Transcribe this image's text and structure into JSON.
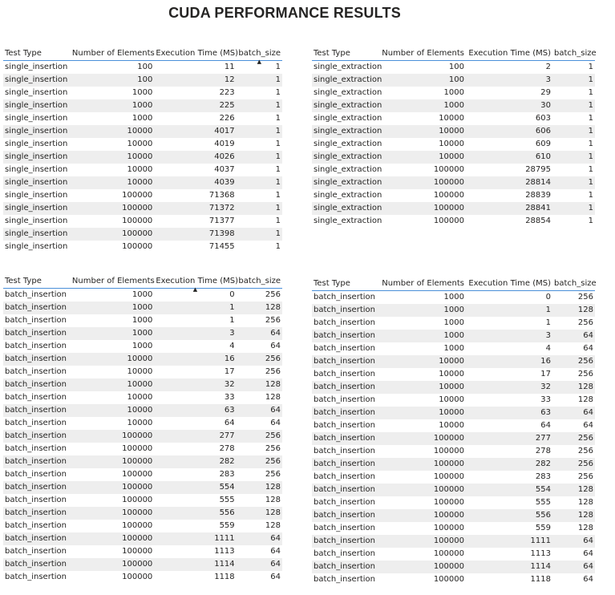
{
  "title": "CUDA PERFORMANCE RESULTS",
  "tables": [
    {
      "columns": [
        "Test Type",
        "Number of Elements",
        "Execution Time (MS)",
        "batch_size"
      ],
      "sort_column": 3,
      "rows": [
        [
          "single_insertion",
          "100",
          "11",
          "1"
        ],
        [
          "single_insertion",
          "100",
          "12",
          "1"
        ],
        [
          "single_insertion",
          "1000",
          "223",
          "1"
        ],
        [
          "single_insertion",
          "1000",
          "225",
          "1"
        ],
        [
          "single_insertion",
          "1000",
          "226",
          "1"
        ],
        [
          "single_insertion",
          "10000",
          "4017",
          "1"
        ],
        [
          "single_insertion",
          "10000",
          "4019",
          "1"
        ],
        [
          "single_insertion",
          "10000",
          "4026",
          "1"
        ],
        [
          "single_insertion",
          "10000",
          "4037",
          "1"
        ],
        [
          "single_insertion",
          "10000",
          "4039",
          "1"
        ],
        [
          "single_insertion",
          "100000",
          "71368",
          "1"
        ],
        [
          "single_insertion",
          "100000",
          "71372",
          "1"
        ],
        [
          "single_insertion",
          "100000",
          "71377",
          "1"
        ],
        [
          "single_insertion",
          "100000",
          "71398",
          "1"
        ],
        [
          "single_insertion",
          "100000",
          "71455",
          "1"
        ]
      ]
    },
    {
      "columns": [
        "Test Type",
        "Number of Elements",
        "Execution Time (MS)",
        "batch_size"
      ],
      "sort_column": -1,
      "rows": [
        [
          "single_extraction",
          "100",
          "2",
          "1"
        ],
        [
          "single_extraction",
          "100",
          "3",
          "1"
        ],
        [
          "single_extraction",
          "1000",
          "29",
          "1"
        ],
        [
          "single_extraction",
          "1000",
          "30",
          "1"
        ],
        [
          "single_extraction",
          "10000",
          "603",
          "1"
        ],
        [
          "single_extraction",
          "10000",
          "606",
          "1"
        ],
        [
          "single_extraction",
          "10000",
          "609",
          "1"
        ],
        [
          "single_extraction",
          "10000",
          "610",
          "1"
        ],
        [
          "single_extraction",
          "100000",
          "28795",
          "1"
        ],
        [
          "single_extraction",
          "100000",
          "28814",
          "1"
        ],
        [
          "single_extraction",
          "100000",
          "28839",
          "1"
        ],
        [
          "single_extraction",
          "100000",
          "28841",
          "1"
        ],
        [
          "single_extraction",
          "100000",
          "28854",
          "1"
        ]
      ]
    },
    {
      "columns": [
        "Test Type",
        "Number of Elements",
        "Execution Time (MS)",
        "batch_size"
      ],
      "sort_column": 2,
      "rows": [
        [
          "batch_insertion",
          "1000",
          "0",
          "256"
        ],
        [
          "batch_insertion",
          "1000",
          "1",
          "128"
        ],
        [
          "batch_insertion",
          "1000",
          "1",
          "256"
        ],
        [
          "batch_insertion",
          "1000",
          "3",
          "64"
        ],
        [
          "batch_insertion",
          "1000",
          "4",
          "64"
        ],
        [
          "batch_insertion",
          "10000",
          "16",
          "256"
        ],
        [
          "batch_insertion",
          "10000",
          "17",
          "256"
        ],
        [
          "batch_insertion",
          "10000",
          "32",
          "128"
        ],
        [
          "batch_insertion",
          "10000",
          "33",
          "128"
        ],
        [
          "batch_insertion",
          "10000",
          "63",
          "64"
        ],
        [
          "batch_insertion",
          "10000",
          "64",
          "64"
        ],
        [
          "batch_insertion",
          "100000",
          "277",
          "256"
        ],
        [
          "batch_insertion",
          "100000",
          "278",
          "256"
        ],
        [
          "batch_insertion",
          "100000",
          "282",
          "256"
        ],
        [
          "batch_insertion",
          "100000",
          "283",
          "256"
        ],
        [
          "batch_insertion",
          "100000",
          "554",
          "128"
        ],
        [
          "batch_insertion",
          "100000",
          "555",
          "128"
        ],
        [
          "batch_insertion",
          "100000",
          "556",
          "128"
        ],
        [
          "batch_insertion",
          "100000",
          "559",
          "128"
        ],
        [
          "batch_insertion",
          "100000",
          "1111",
          "64"
        ],
        [
          "batch_insertion",
          "100000",
          "1113",
          "64"
        ],
        [
          "batch_insertion",
          "100000",
          "1114",
          "64"
        ],
        [
          "batch_insertion",
          "100000",
          "1118",
          "64"
        ]
      ]
    },
    {
      "columns": [
        "Test Type",
        "Number of Elements",
        "Execution Time (MS)",
        "batch_size"
      ],
      "sort_column": -1,
      "rows": [
        [
          "batch_insertion",
          "1000",
          "0",
          "256"
        ],
        [
          "batch_insertion",
          "1000",
          "1",
          "128"
        ],
        [
          "batch_insertion",
          "1000",
          "1",
          "256"
        ],
        [
          "batch_insertion",
          "1000",
          "3",
          "64"
        ],
        [
          "batch_insertion",
          "1000",
          "4",
          "64"
        ],
        [
          "batch_insertion",
          "10000",
          "16",
          "256"
        ],
        [
          "batch_insertion",
          "10000",
          "17",
          "256"
        ],
        [
          "batch_insertion",
          "10000",
          "32",
          "128"
        ],
        [
          "batch_insertion",
          "10000",
          "33",
          "128"
        ],
        [
          "batch_insertion",
          "10000",
          "63",
          "64"
        ],
        [
          "batch_insertion",
          "10000",
          "64",
          "64"
        ],
        [
          "batch_insertion",
          "100000",
          "277",
          "256"
        ],
        [
          "batch_insertion",
          "100000",
          "278",
          "256"
        ],
        [
          "batch_insertion",
          "100000",
          "282",
          "256"
        ],
        [
          "batch_insertion",
          "100000",
          "283",
          "256"
        ],
        [
          "batch_insertion",
          "100000",
          "554",
          "128"
        ],
        [
          "batch_insertion",
          "100000",
          "555",
          "128"
        ],
        [
          "batch_insertion",
          "100000",
          "556",
          "128"
        ],
        [
          "batch_insertion",
          "100000",
          "559",
          "128"
        ],
        [
          "batch_insertion",
          "100000",
          "1111",
          "64"
        ],
        [
          "batch_insertion",
          "100000",
          "1113",
          "64"
        ],
        [
          "batch_insertion",
          "100000",
          "1114",
          "64"
        ],
        [
          "batch_insertion",
          "100000",
          "1118",
          "64"
        ]
      ]
    }
  ],
  "colors": {
    "header_rule": "#4a90d9",
    "band": "#eeeeee",
    "text": "#252423"
  },
  "icons": {
    "sort": "sort-ascending-icon"
  }
}
